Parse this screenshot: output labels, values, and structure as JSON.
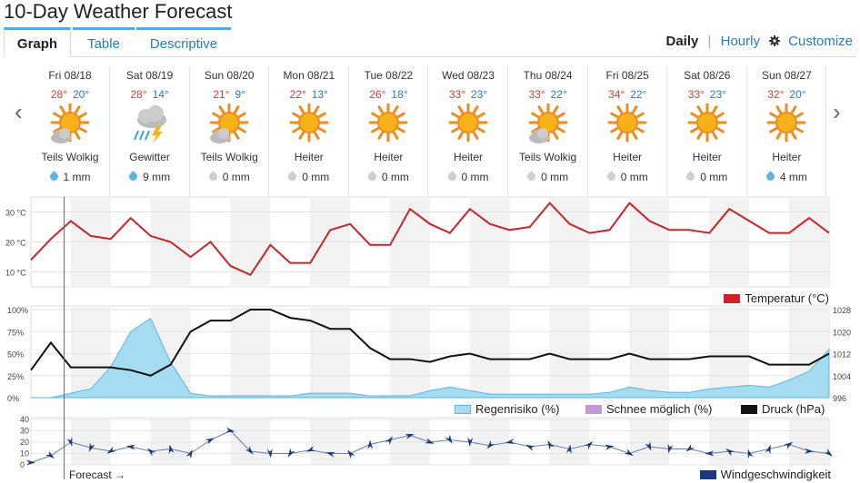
{
  "title": "10-Day Weather Forecast",
  "tabs": [
    "Graph",
    "Table",
    "Descriptive"
  ],
  "view": {
    "daily": "Daily",
    "hourly": "Hourly",
    "customize": "Customize"
  },
  "days": [
    {
      "name": "Fri 08/18",
      "hi": "28°",
      "lo": "20°",
      "icon": "sun-cloud-icon",
      "cond": "Teils Wolkig",
      "precip": "1 mm",
      "drop": "blue"
    },
    {
      "name": "Sat 08/19",
      "hi": "28°",
      "lo": "14°",
      "icon": "thunderstorm-icon",
      "cond": "Gewitter",
      "precip": "9 mm",
      "drop": "blue"
    },
    {
      "name": "Sun 08/20",
      "hi": "21°",
      "lo": "9°",
      "icon": "sun-cloud-icon",
      "cond": "Teils Wolkig",
      "precip": "0 mm",
      "drop": "grey"
    },
    {
      "name": "Mon 08/21",
      "hi": "22°",
      "lo": "13°",
      "icon": "sun-icon",
      "cond": "Heiter",
      "precip": "0 mm",
      "drop": "grey"
    },
    {
      "name": "Tue 08/22",
      "hi": "26°",
      "lo": "18°",
      "icon": "sun-icon",
      "cond": "Heiter",
      "precip": "0 mm",
      "drop": "grey"
    },
    {
      "name": "Wed 08/23",
      "hi": "33°",
      "lo": "23°",
      "icon": "sun-icon",
      "cond": "Heiter",
      "precip": "0 mm",
      "drop": "grey"
    },
    {
      "name": "Thu 08/24",
      "hi": "33°",
      "lo": "22°",
      "icon": "sun-cloud-icon",
      "cond": "Teils Wolkig",
      "precip": "0 mm",
      "drop": "grey"
    },
    {
      "name": "Fri 08/25",
      "hi": "34°",
      "lo": "22°",
      "icon": "sun-icon",
      "cond": "Heiter",
      "precip": "0 mm",
      "drop": "grey"
    },
    {
      "name": "Sat 08/26",
      "hi": "33°",
      "lo": "23°",
      "icon": "sun-icon",
      "cond": "Heiter",
      "precip": "0 mm",
      "drop": "grey"
    },
    {
      "name": "Sun 08/27",
      "hi": "32°",
      "lo": "20°",
      "icon": "sun-icon",
      "cond": "Heiter",
      "precip": "4 mm",
      "drop": "blue"
    }
  ],
  "colors": {
    "temp": "#cc2229",
    "rain": "#a6dcf2",
    "rain_line": "#5bb6e6",
    "snow": "#c29ad6",
    "pressure": "#111111",
    "wind": "#1a3a7a"
  },
  "chart_data": [
    {
      "type": "line",
      "x": [
        0,
        6,
        12,
        18,
        24,
        30,
        36,
        42,
        48,
        54,
        60,
        66,
        72,
        78,
        84,
        90,
        96,
        102,
        108,
        114,
        120,
        126,
        132,
        138,
        144,
        150,
        156,
        162,
        168,
        174,
        180,
        186,
        192,
        198,
        204,
        210,
        216,
        222,
        228,
        234,
        240
      ],
      "series": [
        {
          "name": "Temperatur (°C)",
          "values": [
            14,
            21,
            27,
            22,
            21,
            28,
            22,
            20,
            15,
            20,
            12,
            9,
            19,
            13,
            13,
            24,
            26,
            19,
            19,
            31,
            26,
            23,
            31,
            26,
            24,
            25,
            33,
            26,
            23,
            24,
            33,
            27,
            24,
            24,
            23,
            31,
            27,
            23,
            23,
            28,
            23
          ]
        }
      ],
      "yticks": [
        "10 °C",
        "20 °C",
        "30 °C"
      ],
      "ylim": [
        5,
        35
      ],
      "forecast_start_x": 10
    },
    {
      "type": "area",
      "x": [
        0,
        6,
        12,
        18,
        24,
        30,
        36,
        42,
        48,
        54,
        60,
        66,
        72,
        78,
        84,
        90,
        96,
        102,
        108,
        114,
        120,
        126,
        132,
        138,
        144,
        150,
        156,
        162,
        168,
        174,
        180,
        186,
        192,
        198,
        204,
        210,
        216,
        222,
        228,
        234,
        240
      ],
      "series": [
        {
          "name": "Regenrisiko (%)",
          "values": [
            0,
            0,
            5,
            10,
            35,
            75,
            90,
            40,
            5,
            2,
            2,
            2,
            2,
            2,
            5,
            5,
            5,
            2,
            2,
            2,
            8,
            12,
            8,
            4,
            4,
            4,
            4,
            4,
            4,
            6,
            12,
            8,
            6,
            6,
            10,
            12,
            14,
            12,
            20,
            30,
            55
          ]
        },
        {
          "name": "Druck (hPa)",
          "values": [
            1006,
            1016,
            1007,
            1007,
            1007,
            1006,
            1004,
            1008,
            1020,
            1024,
            1024,
            1028,
            1028,
            1025,
            1024,
            1021,
            1021,
            1014,
            1010,
            1010,
            1009,
            1011,
            1012,
            1010,
            1010,
            1010,
            1012,
            1010,
            1010,
            1010,
            1012,
            1010,
            1010,
            1010,
            1011,
            1011,
            1011,
            1008,
            1008,
            1008,
            1012
          ]
        }
      ],
      "legend": [
        "Regenrisiko (%)",
        "Schnee möglich (%)",
        "Druck (hPa)"
      ],
      "yticks_left": [
        "0%",
        "25%",
        "50%",
        "75%",
        "100%"
      ],
      "yticks_right": [
        "996",
        "1004",
        "1012",
        "1020",
        "1028"
      ],
      "ylim_left": [
        0,
        100
      ],
      "ylim_right": [
        996,
        1028
      ]
    },
    {
      "type": "line",
      "x": [
        0,
        6,
        12,
        18,
        24,
        30,
        36,
        42,
        48,
        54,
        60,
        66,
        72,
        78,
        84,
        90,
        96,
        102,
        108,
        114,
        120,
        126,
        132,
        138,
        144,
        150,
        156,
        162,
        168,
        174,
        180,
        186,
        192,
        198,
        204,
        210,
        216,
        222,
        228,
        234,
        240
      ],
      "series": [
        {
          "name": "Windgeschwindigkeit",
          "values": [
            2,
            8,
            20,
            15,
            12,
            16,
            12,
            14,
            10,
            22,
            30,
            12,
            10,
            10,
            13,
            10,
            10,
            18,
            22,
            26,
            20,
            22,
            20,
            17,
            20,
            16,
            18,
            14,
            18,
            16,
            10,
            16,
            14,
            14,
            10,
            12,
            10,
            14,
            18,
            12,
            10
          ]
        }
      ],
      "yticks": [
        "0",
        "10",
        "20",
        "30",
        "40"
      ],
      "ylim": [
        0,
        40
      ]
    }
  ],
  "forecast_label": "Forecast →",
  "legend_temp": "Temperatur (°C)",
  "legend_rain": "Regenrisiko (%)",
  "legend_snow": "Schnee möglich (%)",
  "legend_pressure": "Druck (hPa)",
  "legend_wind": "Windgeschwindigkeit"
}
